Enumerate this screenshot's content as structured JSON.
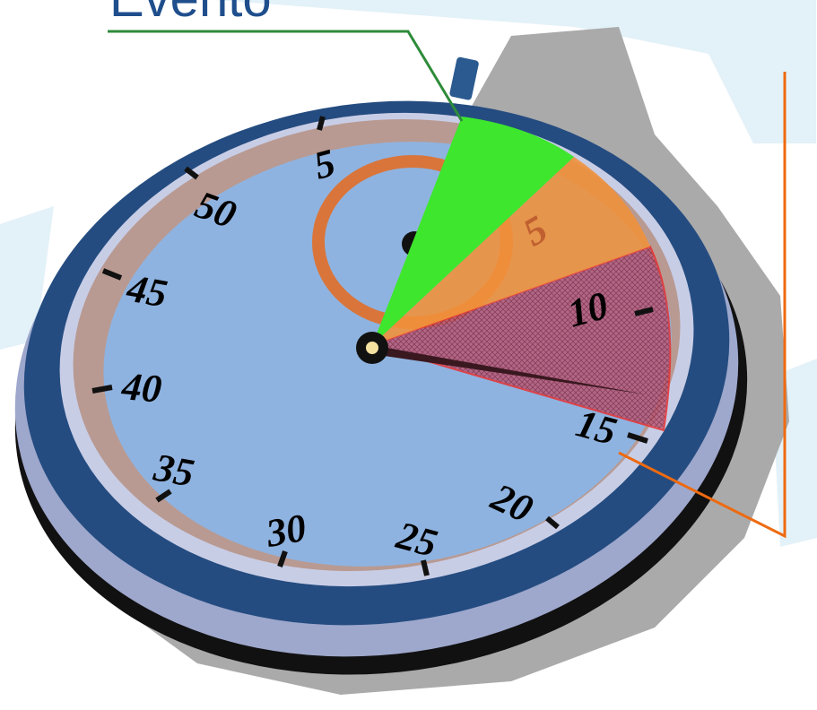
{
  "label": "Evento",
  "dial": {
    "numbers": [
      "5",
      "10",
      "15",
      "20",
      "25",
      "30",
      "35",
      "40",
      "45",
      "50"
    ],
    "inner_number": "5"
  }
}
